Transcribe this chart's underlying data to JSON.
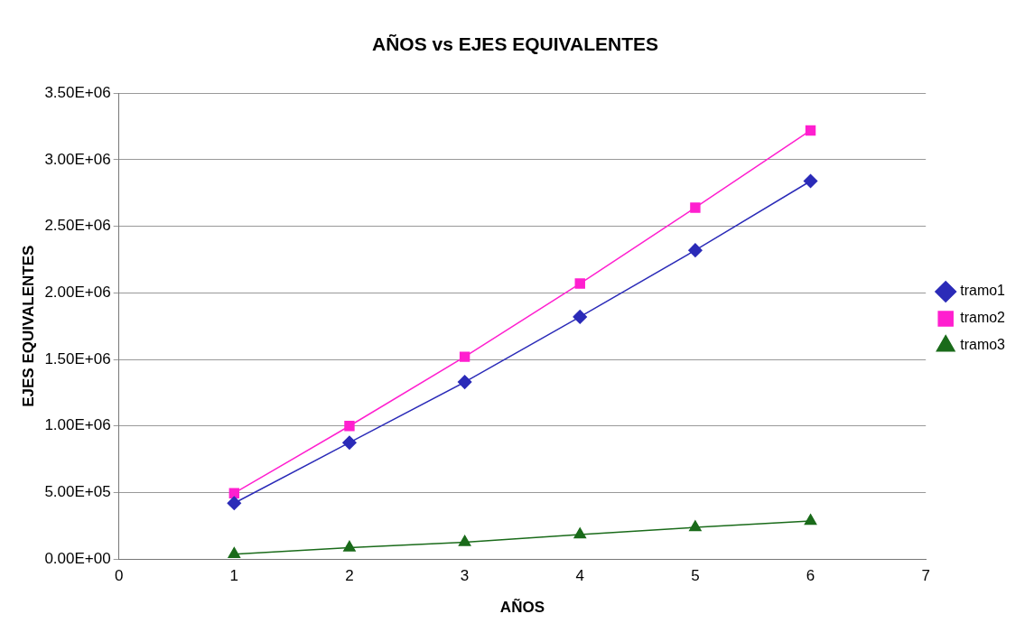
{
  "chart_data": {
    "type": "line",
    "title": "AÑOS vs EJES EQUIVALENTES",
    "xlabel": "AÑOS",
    "ylabel": "EJES EQUIVALENTES",
    "x": [
      1,
      2,
      3,
      4,
      5,
      6
    ],
    "series": [
      {
        "name": "tramo1",
        "color": "#2b2bb8",
        "marker": "diamond",
        "values": [
          420000,
          875000,
          1330000,
          1820000,
          2320000,
          2840000
        ]
      },
      {
        "name": "tramo2",
        "color": "#ff1fcf",
        "marker": "square",
        "values": [
          495000,
          1000000,
          1520000,
          2070000,
          2640000,
          3220000
        ]
      },
      {
        "name": "tramo3",
        "color": "#1a6b1a",
        "marker": "triangle",
        "values": [
          37000,
          86000,
          127000,
          184000,
          238000,
          287000
        ]
      }
    ],
    "xlim": [
      0,
      7
    ],
    "xticks": [
      0,
      1,
      2,
      3,
      4,
      5,
      6,
      7
    ],
    "ylim": [
      0,
      3500000
    ],
    "yticks": [
      {
        "value": 0,
        "label": "0.00E+00"
      },
      {
        "value": 500000,
        "label": "5.00E+05"
      },
      {
        "value": 1000000,
        "label": "1.00E+06"
      },
      {
        "value": 1500000,
        "label": "1.50E+06"
      },
      {
        "value": 2000000,
        "label": "2.00E+06"
      },
      {
        "value": 2500000,
        "label": "2.50E+06"
      },
      {
        "value": 3000000,
        "label": "3.00E+06"
      },
      {
        "value": 3500000,
        "label": "3.50E+06"
      }
    ],
    "grid": "y",
    "legend": "right",
    "line_style": "solid"
  }
}
